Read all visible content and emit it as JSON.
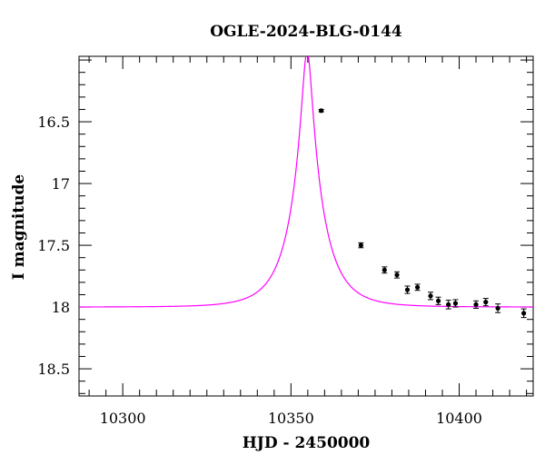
{
  "chart_data": {
    "type": "scatter",
    "title": "OGLE-2024-BLG-0144",
    "xlabel": "HJD - 2450000",
    "ylabel": "I magnitude",
    "xlim": [
      10287,
      10422
    ],
    "ylim": [
      18.72,
      15.97
    ],
    "y_inverted": true,
    "x_ticks": [
      10300,
      10350,
      10400
    ],
    "x_tick_labels": [
      "10300",
      "10350",
      "10400"
    ],
    "y_ticks": [
      16.5,
      17,
      17.5,
      18,
      18.5
    ],
    "y_tick_labels": [
      "16.5",
      "17",
      "17.5",
      "18",
      "18.5"
    ],
    "grid": false,
    "colors": {
      "model": "#ff00ff",
      "points": "#000000"
    },
    "model": {
      "name": "",
      "baseline_mag": 18.0,
      "t0": 10354.8,
      "tE": 9.5,
      "u0": 0.15
    },
    "series": [
      {
        "points": [
          {
            "x": 10359.0,
            "y": 16.41,
            "err": 0.01
          },
          {
            "x": 10370.8,
            "y": 17.5,
            "err": 0.02
          },
          {
            "x": 10377.8,
            "y": 17.7,
            "err": 0.025
          },
          {
            "x": 10381.5,
            "y": 17.74,
            "err": 0.025
          },
          {
            "x": 10384.6,
            "y": 17.86,
            "err": 0.03
          },
          {
            "x": 10387.6,
            "y": 17.84,
            "err": 0.025
          },
          {
            "x": 10391.5,
            "y": 17.91,
            "err": 0.03
          },
          {
            "x": 10393.8,
            "y": 17.95,
            "err": 0.03
          },
          {
            "x": 10396.8,
            "y": 17.98,
            "err": 0.035
          },
          {
            "x": 10398.9,
            "y": 17.97,
            "err": 0.03
          },
          {
            "x": 10405.0,
            "y": 17.98,
            "err": 0.03
          },
          {
            "x": 10407.9,
            "y": 17.96,
            "err": 0.03
          },
          {
            "x": 10411.5,
            "y": 18.01,
            "err": 0.035
          },
          {
            "x": 10419.2,
            "y": 18.05,
            "err": 0.035
          }
        ]
      }
    ]
  }
}
